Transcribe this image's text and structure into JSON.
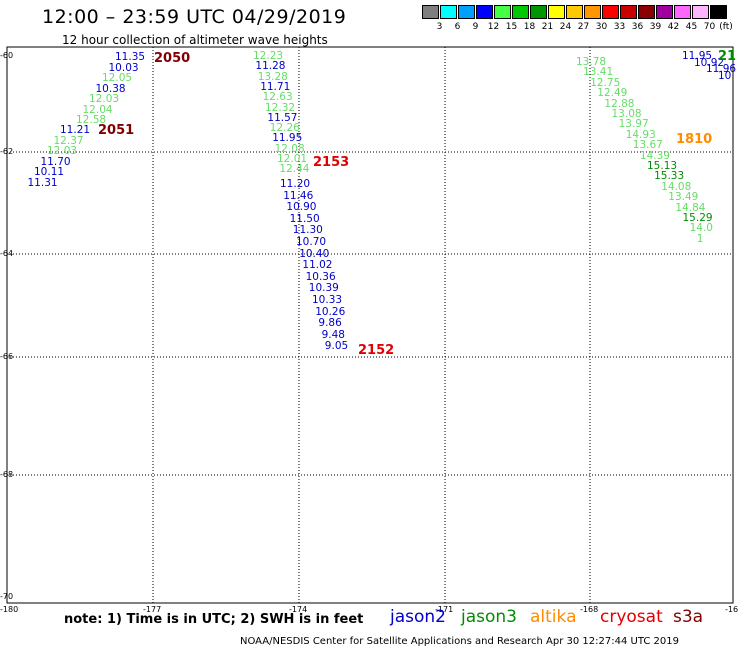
{
  "title": "12:00 – 23:59 UTC 04/29/2019",
  "subtitle": "12 hour collection of altimeter wave heights",
  "colorbar": {
    "unit": "(ft)",
    "swatches": [
      {
        "color": "#7f7f7f",
        "label": "3"
      },
      {
        "color": "#00ffff",
        "label": "6"
      },
      {
        "color": "#00a0ff",
        "label": "9"
      },
      {
        "color": "#0000ff",
        "label": "12"
      },
      {
        "color": "#44ff44",
        "label": "15"
      },
      {
        "color": "#00c800",
        "label": "18"
      },
      {
        "color": "#009600",
        "label": "21"
      },
      {
        "color": "#ffff00",
        "label": "24"
      },
      {
        "color": "#ffc800",
        "label": "27"
      },
      {
        "color": "#ff9600",
        "label": "30"
      },
      {
        "color": "#ff0000",
        "label": "33"
      },
      {
        "color": "#c80000",
        "label": "36"
      },
      {
        "color": "#8b0000",
        "label": "39"
      },
      {
        "color": "#a000a0",
        "label": "42"
      },
      {
        "color": "#ff66ff",
        "label": "45"
      },
      {
        "color": "#ffb4ff",
        "label": "70"
      },
      {
        "color": "#000000",
        "label": ""
      }
    ]
  },
  "colors": {
    "jason2": "#0000c8",
    "jason3": "#008c00",
    "altika": "#ff8c00",
    "cryosat": "#e00000",
    "s3a": "#800000",
    "light_green": "#66dd66",
    "grid": "#000000"
  },
  "axes": {
    "lat_labels": [
      "-60",
      "-62",
      "-64",
      "-66",
      "-68",
      "-70"
    ],
    "lon_labels": [
      "-180",
      "-177",
      "-174",
      "-171",
      "-168",
      "-16"
    ]
  },
  "tracks": [
    {
      "pass": "2050",
      "pass_color": "s3a",
      "values": [
        {
          "text": "11.35",
          "color": "jason2"
        },
        {
          "text": "10.03",
          "color": "jason2"
        },
        {
          "text": "12.05",
          "color": "light_green"
        },
        {
          "text": "10.38",
          "color": "jason2"
        },
        {
          "text": "12.03",
          "color": "light_green"
        },
        {
          "text": "12.04",
          "color": "light_green"
        },
        {
          "text": "12.58",
          "color": "light_green"
        }
      ]
    },
    {
      "pass": "2051",
      "pass_color": "s3a",
      "values": [
        {
          "text": "11.21",
          "color": "jason2"
        },
        {
          "text": "12.37",
          "color": "light_green"
        },
        {
          "text": "12.03",
          "color": "light_green"
        },
        {
          "text": "11.70",
          "color": "jason2"
        },
        {
          "text": "10.11",
          "color": "jason2"
        },
        {
          "text": "11.31",
          "color": "jason2"
        }
      ]
    },
    {
      "pass": "2153",
      "pass_color": "cryosat",
      "values": [
        {
          "text": "12.23",
          "color": "light_green"
        },
        {
          "text": "11.28",
          "color": "jason2"
        },
        {
          "text": "13.28",
          "color": "light_green"
        },
        {
          "text": "11.71",
          "color": "jason2"
        },
        {
          "text": "12.63",
          "color": "light_green"
        },
        {
          "text": "12.32",
          "color": "light_green"
        },
        {
          "text": "11.57",
          "color": "jason2"
        },
        {
          "text": "12.26",
          "color": "light_green"
        },
        {
          "text": "11.95",
          "color": "jason2"
        },
        {
          "text": "12.08",
          "color": "light_green"
        },
        {
          "text": "12.01",
          "color": "light_green"
        },
        {
          "text": "12.44",
          "color": "light_green"
        }
      ]
    },
    {
      "pass": "2152",
      "pass_color": "cryosat",
      "values": [
        {
          "text": "11.20",
          "color": "jason2"
        },
        {
          "text": "11.46",
          "color": "jason2"
        },
        {
          "text": "10.90",
          "color": "jason2"
        },
        {
          "text": "11.50",
          "color": "jason2"
        },
        {
          "text": "11.30",
          "color": "jason2"
        },
        {
          "text": "10.70",
          "color": "jason2"
        },
        {
          "text": "10.40",
          "color": "jason2"
        },
        {
          "text": "11.02",
          "color": "jason2"
        },
        {
          "text": "10.36",
          "color": "jason2"
        },
        {
          "text": "10.39",
          "color": "jason2"
        },
        {
          "text": "10.33",
          "color": "jason2"
        },
        {
          "text": "10.26",
          "color": "jason2"
        },
        {
          "text": "9.86",
          "color": "jason2"
        },
        {
          "text": "9.48",
          "color": "jason2"
        },
        {
          "text": "9.05",
          "color": "jason2"
        }
      ]
    },
    {
      "pass": "1810",
      "pass_color": "altika",
      "values": [
        {
          "text": "13.78",
          "color": "light_green"
        },
        {
          "text": "13.41",
          "color": "light_green"
        },
        {
          "text": "12.75",
          "color": "light_green"
        },
        {
          "text": "12.49",
          "color": "light_green"
        },
        {
          "text": "12.88",
          "color": "light_green"
        },
        {
          "text": "13.08",
          "color": "light_green"
        },
        {
          "text": "13.97",
          "color": "light_green"
        },
        {
          "text": "14.93",
          "color": "light_green"
        },
        {
          "text": "13.67",
          "color": "light_green"
        },
        {
          "text": "14.39",
          "color": "light_green"
        },
        {
          "text": "15.13",
          "color": "jason3"
        },
        {
          "text": "15.33",
          "color": "jason3"
        },
        {
          "text": "14.08",
          "color": "light_green"
        },
        {
          "text": "13.49",
          "color": "light_green"
        },
        {
          "text": "14.84",
          "color": "light_green"
        },
        {
          "text": "15.29",
          "color": "jason3"
        },
        {
          "text": "14.0",
          "color": "light_green"
        },
        {
          "text": "1",
          "color": "light_green"
        }
      ]
    },
    {
      "pass": "21",
      "pass_color": "jason3",
      "values": [
        {
          "text": "11.95",
          "color": "jason2"
        },
        {
          "text": "10.92",
          "color": "jason2"
        },
        {
          "text": "11.96",
          "color": "jason2"
        },
        {
          "text": "10",
          "color": "jason2"
        }
      ]
    }
  ],
  "note": "note: 1) Time is in UTC; 2) SWH is in feet",
  "legend": [
    {
      "name": "jason2",
      "color": "jason2"
    },
    {
      "name": "jason3",
      "color": "jason3"
    },
    {
      "name": "altika",
      "color": "altika"
    },
    {
      "name": "cryosat",
      "color": "cryosat"
    },
    {
      "name": "s3a",
      "color": "s3a"
    }
  ],
  "footer": "NOAA/NESDIS Center for Satellite Applications and Research    Apr 30 12:27:44 UTC 2019"
}
